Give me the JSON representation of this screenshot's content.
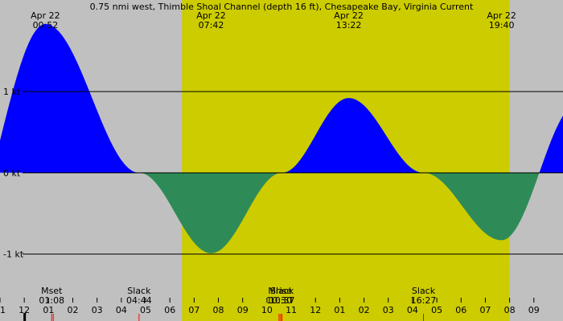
{
  "colors": {
    "night_bg": "#c0c0c0",
    "day_bg": "#cccc00",
    "flood": "#0000ff",
    "ebb": "#2e8b57",
    "axis": "#000000",
    "moon_tick": "#ff0000"
  },
  "chart_data": {
    "type": "area",
    "title": "0.75 nmi west, Thimble Shoal Channel (depth 16 ft), Chesapeake Bay, Virginia Current",
    "units": "kt",
    "x_start_hour": 23.0,
    "x_end_hour": 46.2,
    "ylim": [
      -1.35,
      1.85
    ],
    "y_ticks": [
      {
        "value": 1,
        "label": "1 kt"
      },
      {
        "value": 0,
        "label": "0 kt"
      },
      {
        "value": -1,
        "label": "-1 kt"
      }
    ],
    "daylight": {
      "start_hour": 30.5,
      "end_hour": 44.0
    },
    "extrema": [
      {
        "date": "Apr 22",
        "time": "00:52",
        "hour": 24.87,
        "speed": 1.83,
        "label": true
      },
      {
        "date": "Apr 22",
        "time": "07:42",
        "hour": 31.7,
        "speed": -0.99,
        "label": true
      },
      {
        "date": "Apr 22",
        "time": "13:22",
        "hour": 37.37,
        "speed": 0.92,
        "label": true
      },
      {
        "date": "Apr 22",
        "time": "19:40",
        "hour": 43.67,
        "speed": -0.83,
        "label": true
      }
    ],
    "slacks": [
      {
        "time": "04:44",
        "hour": 28.73
      },
      {
        "time": "10:37",
        "hour": 34.62
      },
      {
        "time": "16:27",
        "hour": 40.45
      }
    ],
    "moon_events": [
      {
        "label": "Mset",
        "time": "01:08",
        "hour": 25.13
      },
      {
        "label": "Mrise",
        "time": "10:30",
        "hour": 34.5
      }
    ],
    "hour_ticks": [
      "11",
      "12",
      "01",
      "02",
      "03",
      "04",
      "05",
      "06",
      "07",
      "08",
      "09",
      "10",
      "11",
      "12",
      "01",
      "02",
      "03",
      "04",
      "05",
      "06",
      "07",
      "08",
      "09"
    ],
    "first_tick_hour": 23
  }
}
